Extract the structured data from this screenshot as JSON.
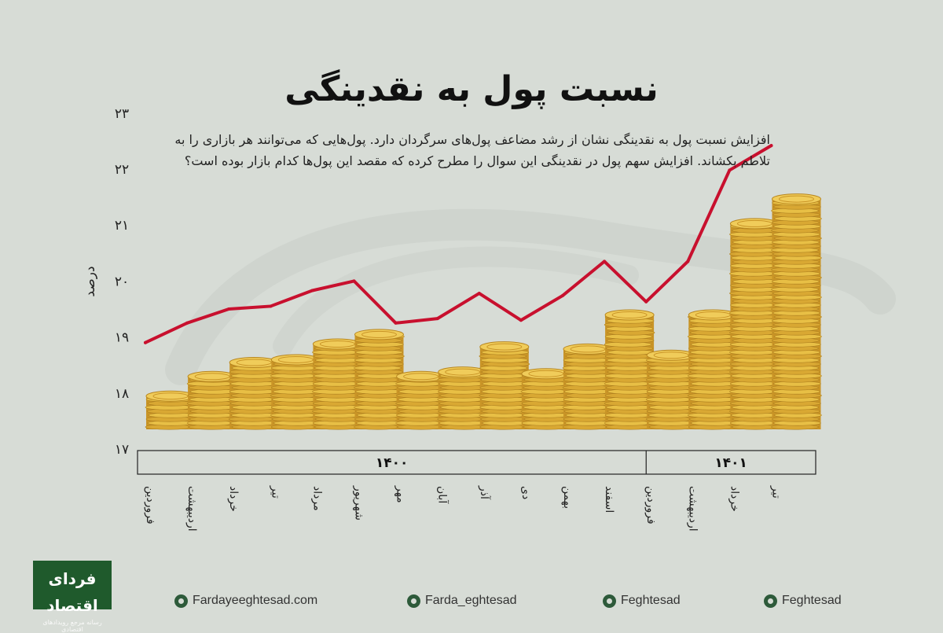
{
  "title": "نسبت پول به نقدینگی",
  "description": "افزایش نسبت پول به نقدینگی نشان از رشد مضاعف پول‌های سرگردان دارد. پول‌هایی که می‌توانند هر بازاری را به تلاطم بکشاند. افزایش سهم پول در نقدینگی این سوال را مطرح کرده که مقصد این پول‌ها کدام بازار بوده است؟",
  "colors": {
    "background": "#d7dcd6",
    "line": "#c8102e",
    "coin": "#e2b53a",
    "brand": "#1f5a2c"
  },
  "chart_data": {
    "type": "line",
    "ylabel": "درصد",
    "ylim": [
      17,
      23
    ],
    "yticks": [
      "۱۷",
      "۱۸",
      "۱۹",
      "۲۰",
      "۲۱",
      "۲۲",
      "۲۳"
    ],
    "categories": [
      "فروردین",
      "اردیبهشت",
      "خرداد",
      "تیر",
      "مرداد",
      "شهریور",
      "مهر",
      "آبان",
      "آذر",
      "دی",
      "بهمن",
      "اسفند",
      "فروردین",
      "اردیبهشت",
      "خرداد",
      "تیر"
    ],
    "years": [
      {
        "label": "۱۴۰۰",
        "count": 12
      },
      {
        "label": "۱۴۰۱",
        "count": 4
      }
    ],
    "series": [
      {
        "values": [
          18.9,
          19.25,
          19.5,
          19.55,
          19.83,
          20.0,
          19.25,
          19.33,
          19.78,
          19.3,
          19.74,
          20.35,
          19.63,
          20.35,
          21.98,
          22.42
        ]
      }
    ]
  },
  "footer": {
    "website": "Fardayeeghtesad.com",
    "instagram": "Farda_eghtesad",
    "telegram": "Feghtesad",
    "twitter": "Feghtesad"
  },
  "logo": {
    "name": "فردای اقتصاد",
    "tagline": "رسانه مرجع رویدادهای اقتصادی"
  }
}
